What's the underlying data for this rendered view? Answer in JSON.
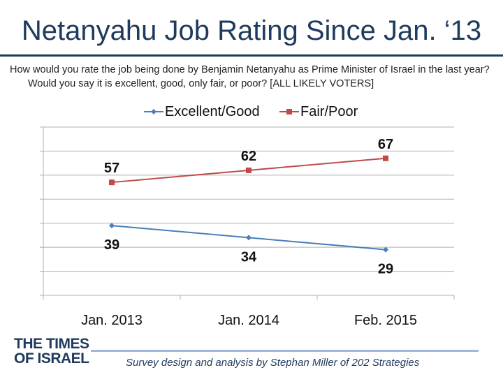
{
  "header": {
    "title": "Netanyahu Job Rating Since Jan. ‘13",
    "question": "How would you rate the job being done by Benjamin Netanyahu as Prime Minister of Israel in the last year? Would you say it is excellent, good, only fair, or poor? [ALL LIKELY VOTERS]"
  },
  "footer": {
    "credit": "Survey design and analysis by Stephan Miller of 202 Strategies",
    "logo_line1": "THE TIMES",
    "logo_line2": "OF ISRAEL"
  },
  "colors": {
    "title": "#1f3a5c",
    "excellent_good": "#4a7ebb",
    "fair_poor": "#be4b48",
    "grid": "#b0b0b0"
  },
  "chart_data": {
    "type": "line",
    "title": "Netanyahu Job Rating Since Jan. ‘13",
    "categories": [
      "Jan. 2013",
      "Jan. 2014",
      "Feb. 2015"
    ],
    "series": [
      {
        "name": "Excellent/Good",
        "values": [
          39,
          34,
          29
        ],
        "color": "#4a7ebb",
        "marker": "diamond"
      },
      {
        "name": "Fair/Poor",
        "values": [
          57,
          62,
          67
        ],
        "color": "#be4b48",
        "marker": "square"
      }
    ],
    "ylim": [
      10,
      80
    ],
    "y_gridline_step": 10,
    "y_tick_labels_shown": false,
    "grid": true,
    "legend_position": "top-center",
    "data_labels": true
  }
}
